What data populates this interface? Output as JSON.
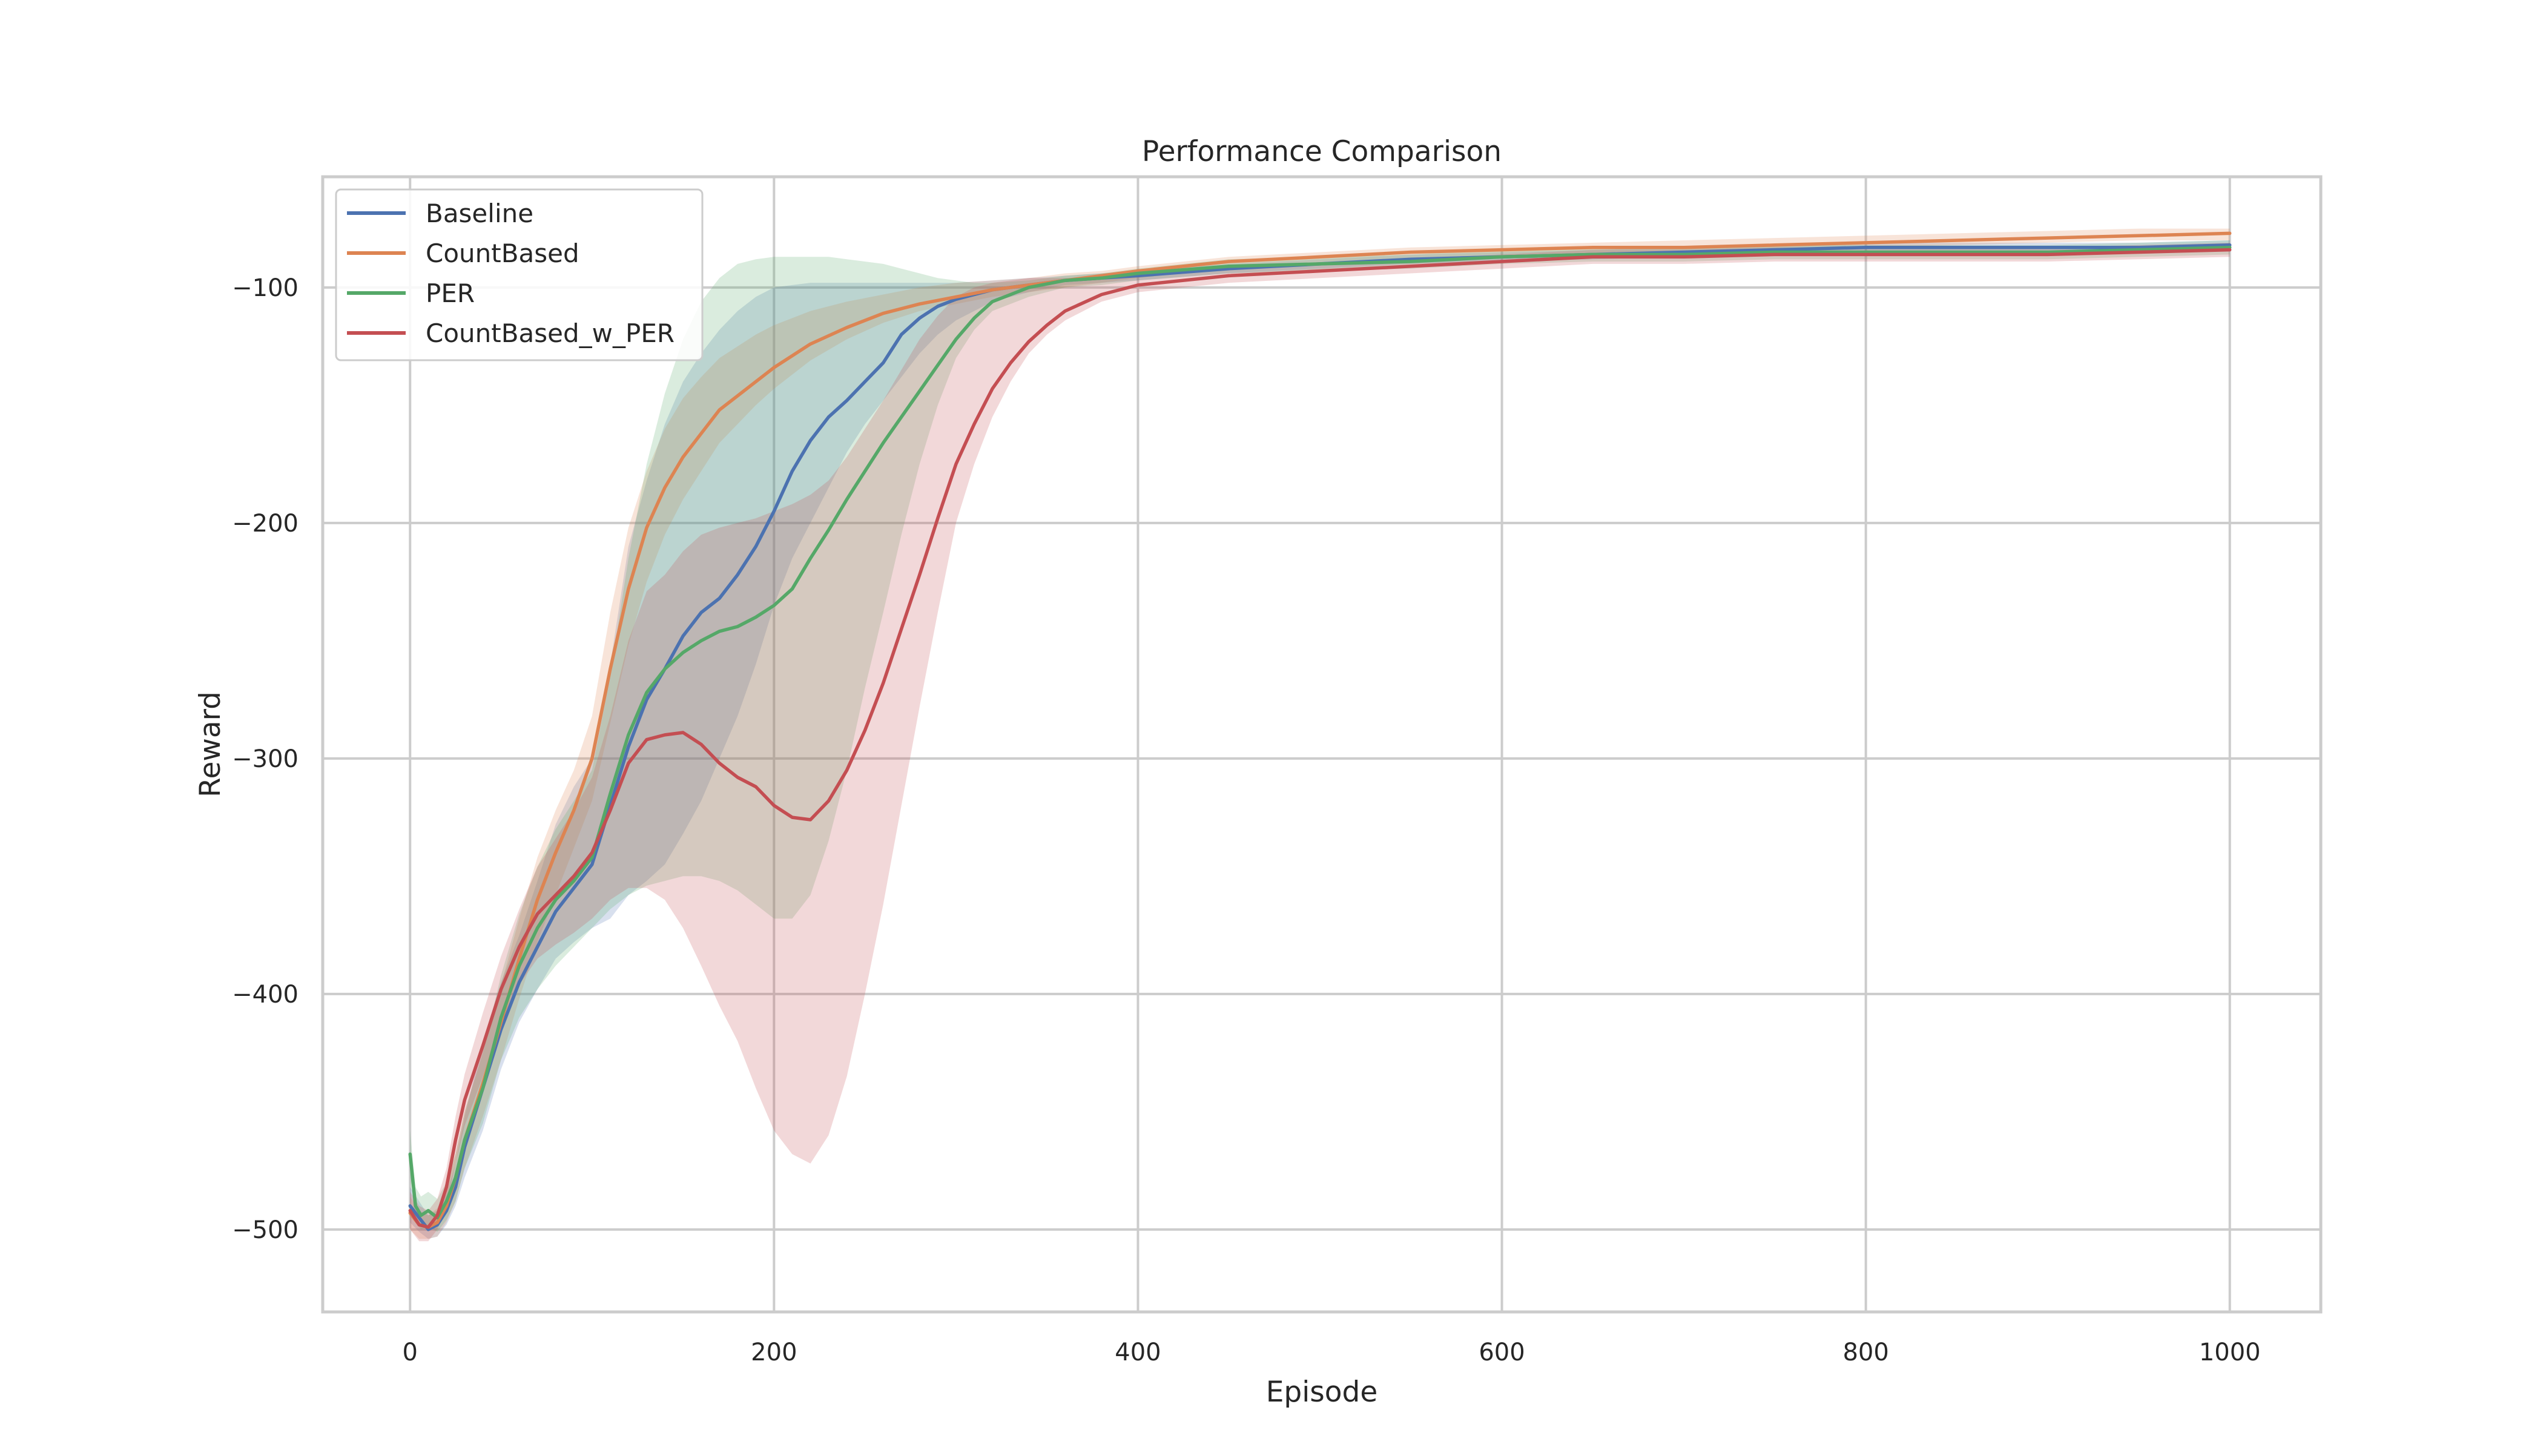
{
  "chart_data": {
    "type": "line",
    "title": "Performance Comparison",
    "xlabel": "Episode",
    "ylabel": "Reward",
    "xlim": [
      -48,
      1050
    ],
    "ylim": [
      -535,
      -53
    ],
    "xticks": [
      0,
      200,
      400,
      600,
      800,
      1000
    ],
    "yticks": [
      -500,
      -400,
      -300,
      -200,
      -100
    ],
    "ytick_labels": [
      "−500",
      "−400",
      "−300",
      "−200",
      "−100"
    ],
    "grid": true,
    "legend_position": "top-left",
    "shaded_band": "variability band around each series mean",
    "series": [
      {
        "name": "Baseline",
        "color": "#4c72b0",
        "x": [
          0,
          5,
          10,
          15,
          20,
          25,
          30,
          40,
          50,
          60,
          70,
          80,
          90,
          100,
          110,
          120,
          130,
          140,
          150,
          160,
          170,
          180,
          190,
          200,
          210,
          220,
          230,
          240,
          250,
          260,
          270,
          280,
          290,
          300,
          320,
          340,
          360,
          380,
          400,
          450,
          500,
          550,
          600,
          650,
          700,
          750,
          800,
          850,
          900,
          950,
          1000
        ],
        "y": [
          -490,
          -495,
          -500,
          -498,
          -492,
          -482,
          -465,
          -440,
          -415,
          -395,
          -380,
          -365,
          -355,
          -345,
          -320,
          -295,
          -275,
          -262,
          -248,
          -238,
          -232,
          -222,
          -210,
          -195,
          -178,
          -165,
          -155,
          -148,
          -140,
          -132,
          -120,
          -113,
          -108,
          -105,
          -101,
          -99,
          -97,
          -96,
          -95,
          -92,
          -90,
          -88,
          -87,
          -86,
          -85,
          -84,
          -83,
          -83,
          -83,
          -83,
          -82
        ],
        "lower": [
          -497,
          -501,
          -504,
          -503,
          -498,
          -490,
          -478,
          -458,
          -432,
          -412,
          -398,
          -385,
          -378,
          -372,
          -368,
          -358,
          -352,
          -345,
          -332,
          -318,
          -300,
          -282,
          -260,
          -235,
          -215,
          -200,
          -185,
          -170,
          -158,
          -148,
          -138,
          -128,
          -120,
          -114,
          -106,
          -102,
          -99,
          -98,
          -97,
          -94,
          -92,
          -90,
          -89,
          -88,
          -87,
          -86,
          -85,
          -85,
          -85,
          -85,
          -84
        ],
        "upper": [
          -482,
          -488,
          -494,
          -492,
          -485,
          -472,
          -452,
          -420,
          -395,
          -375,
          -352,
          -328,
          -312,
          -300,
          -260,
          -210,
          -182,
          -158,
          -140,
          -128,
          -118,
          -110,
          -104,
          -100,
          -99,
          -98,
          -98,
          -98,
          -98,
          -98,
          -98,
          -98,
          -98,
          -98,
          -97,
          -96,
          -95,
          -94,
          -93,
          -90,
          -88,
          -86,
          -85,
          -84,
          -83,
          -82,
          -81,
          -81,
          -81,
          -81,
          -80
        ]
      },
      {
        "name": "CountBased",
        "color": "#dd8452",
        "x": [
          0,
          5,
          10,
          15,
          20,
          25,
          30,
          40,
          50,
          60,
          70,
          80,
          90,
          100,
          110,
          120,
          130,
          140,
          150,
          160,
          170,
          180,
          190,
          200,
          220,
          240,
          260,
          280,
          300,
          320,
          340,
          360,
          380,
          400,
          450,
          500,
          550,
          600,
          650,
          700,
          750,
          800,
          850,
          900,
          950,
          1000
        ],
        "y": [
          -493,
          -498,
          -499,
          -497,
          -490,
          -478,
          -462,
          -438,
          -412,
          -385,
          -360,
          -340,
          -322,
          -300,
          -262,
          -228,
          -202,
          -185,
          -172,
          -162,
          -152,
          -146,
          -140,
          -134,
          -124,
          -117,
          -111,
          -107,
          -104,
          -101,
          -99,
          -97,
          -95,
          -93,
          -89,
          -87,
          -85,
          -84,
          -83,
          -83,
          -82,
          -81,
          -80,
          -79,
          -78,
          -77
        ],
        "lower": [
          -500,
          -504,
          -504,
          -503,
          -497,
          -488,
          -474,
          -452,
          -428,
          -402,
          -378,
          -358,
          -338,
          -318,
          -285,
          -252,
          -225,
          -205,
          -190,
          -178,
          -166,
          -158,
          -150,
          -143,
          -131,
          -122,
          -115,
          -110,
          -107,
          -104,
          -102,
          -100,
          -98,
          -96,
          -92,
          -90,
          -88,
          -87,
          -86,
          -85,
          -84,
          -83,
          -82,
          -81,
          -80,
          -80
        ],
        "upper": [
          -486,
          -492,
          -494,
          -491,
          -483,
          -468,
          -450,
          -424,
          -396,
          -368,
          -342,
          -322,
          -305,
          -282,
          -238,
          -202,
          -178,
          -160,
          -147,
          -138,
          -130,
          -125,
          -120,
          -116,
          -110,
          -106,
          -103,
          -100,
          -98,
          -97,
          -96,
          -94,
          -93,
          -91,
          -87,
          -85,
          -83,
          -82,
          -81,
          -80,
          -79,
          -78,
          -77,
          -76,
          -75,
          -75
        ]
      },
      {
        "name": "PER",
        "color": "#55a868",
        "x": [
          0,
          3,
          6,
          10,
          15,
          20,
          25,
          30,
          40,
          50,
          60,
          70,
          80,
          90,
          100,
          110,
          120,
          130,
          140,
          150,
          160,
          170,
          180,
          190,
          200,
          210,
          220,
          230,
          240,
          250,
          260,
          270,
          280,
          290,
          300,
          310,
          320,
          340,
          360,
          380,
          400,
          450,
          500,
          550,
          600,
          650,
          700,
          750,
          800,
          850,
          900,
          950,
          1000
        ],
        "y": [
          -468,
          -490,
          -494,
          -492,
          -495,
          -488,
          -478,
          -462,
          -440,
          -410,
          -388,
          -372,
          -360,
          -352,
          -342,
          -315,
          -290,
          -272,
          -262,
          -255,
          -250,
          -246,
          -244,
          -240,
          -235,
          -228,
          -215,
          -203,
          -190,
          -178,
          -166,
          -155,
          -144,
          -133,
          -122,
          -113,
          -106,
          -100,
          -97,
          -96,
          -94,
          -91,
          -90,
          -89,
          -87,
          -86,
          -86,
          -85,
          -85,
          -85,
          -85,
          -84,
          -83
        ],
        "lower": [
          -478,
          -497,
          -500,
          -499,
          -501,
          -496,
          -488,
          -474,
          -455,
          -428,
          -410,
          -398,
          -388,
          -380,
          -372,
          -364,
          -358,
          -354,
          -352,
          -350,
          -350,
          -352,
          -356,
          -362,
          -368,
          -368,
          -358,
          -335,
          -305,
          -270,
          -238,
          -205,
          -175,
          -150,
          -130,
          -118,
          -110,
          -104,
          -100,
          -99,
          -97,
          -94,
          -93,
          -92,
          -90,
          -89,
          -89,
          -88,
          -88,
          -88,
          -88,
          -87,
          -86
        ],
        "upper": [
          -458,
          -482,
          -486,
          -484,
          -487,
          -480,
          -468,
          -450,
          -425,
          -392,
          -366,
          -346,
          -330,
          -318,
          -305,
          -265,
          -215,
          -175,
          -145,
          -122,
          -106,
          -96,
          -90,
          -88,
          -87,
          -87,
          -87,
          -87,
          -88,
          -89,
          -90,
          -92,
          -94,
          -96,
          -97,
          -98,
          -98,
          -97,
          -95,
          -94,
          -92,
          -88,
          -87,
          -86,
          -84,
          -83,
          -83,
          -82,
          -82,
          -82,
          -82,
          -81,
          -80
        ]
      },
      {
        "name": "CountBased_w_PER",
        "color": "#c44e52",
        "x": [
          0,
          5,
          10,
          15,
          20,
          25,
          30,
          40,
          50,
          60,
          70,
          80,
          90,
          100,
          110,
          120,
          130,
          140,
          150,
          160,
          170,
          180,
          190,
          200,
          210,
          220,
          230,
          240,
          250,
          260,
          270,
          280,
          290,
          300,
          310,
          320,
          330,
          340,
          350,
          360,
          380,
          400,
          450,
          500,
          550,
          600,
          650,
          700,
          750,
          800,
          850,
          900,
          950,
          1000
        ],
        "y": [
          -492,
          -498,
          -499,
          -494,
          -482,
          -462,
          -445,
          -422,
          -398,
          -380,
          -366,
          -358,
          -350,
          -340,
          -322,
          -302,
          -292,
          -290,
          -289,
          -294,
          -302,
          -308,
          -312,
          -320,
          -325,
          -326,
          -318,
          -305,
          -288,
          -268,
          -245,
          -222,
          -198,
          -175,
          -158,
          -143,
          -132,
          -123,
          -116,
          -110,
          -103,
          -99,
          -95,
          -93,
          -91,
          -89,
          -87,
          -87,
          -86,
          -86,
          -86,
          -86,
          -85,
          -84
        ],
        "lower": [
          -500,
          -505,
          -505,
          -500,
          -490,
          -472,
          -456,
          -435,
          -412,
          -396,
          -385,
          -379,
          -374,
          -368,
          -360,
          -355,
          -355,
          -360,
          -372,
          -388,
          -405,
          -420,
          -440,
          -458,
          -468,
          -472,
          -460,
          -435,
          -400,
          -362,
          -320,
          -278,
          -238,
          -200,
          -175,
          -155,
          -140,
          -128,
          -120,
          -114,
          -106,
          -102,
          -98,
          -96,
          -94,
          -92,
          -90,
          -90,
          -89,
          -89,
          -89,
          -89,
          -88,
          -87
        ],
        "upper": [
          -484,
          -490,
          -492,
          -487,
          -474,
          -452,
          -434,
          -408,
          -384,
          -364,
          -346,
          -334,
          -322,
          -308,
          -282,
          -250,
          -229,
          -222,
          -212,
          -205,
          -202,
          -200,
          -198,
          -195,
          -192,
          -188,
          -182,
          -172,
          -160,
          -148,
          -135,
          -122,
          -112,
          -104,
          -100,
          -98,
          -97,
          -96,
          -96,
          -96,
          -96,
          -95,
          -92,
          -90,
          -88,
          -86,
          -84,
          -84,
          -83,
          -83,
          -83,
          -83,
          -82,
          -81
        ]
      }
    ]
  }
}
